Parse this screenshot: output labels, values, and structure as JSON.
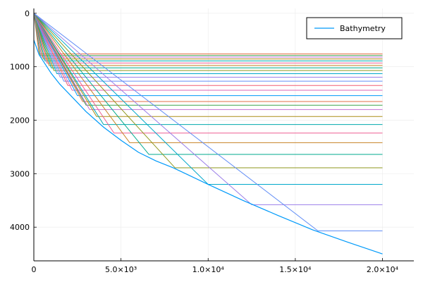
{
  "chart_data": {
    "type": "line",
    "title": "",
    "xlabel": "",
    "ylabel": "",
    "xlim": [
      0,
      21800
    ],
    "ylim": [
      4630,
      -90
    ],
    "y_inverted": true,
    "grid": true,
    "legend_position": "top-right",
    "x_ticks": [
      {
        "value": 0,
        "label": "0"
      },
      {
        "value": 5000,
        "label": "5.0×10³"
      },
      {
        "value": 10000,
        "label": "1.0×10⁴"
      },
      {
        "value": 15000,
        "label": "1.5×10⁴"
      },
      {
        "value": 20000,
        "label": "2.0×10⁴"
      }
    ],
    "y_ticks": [
      {
        "value": 0,
        "label": "0"
      },
      {
        "value": 1000,
        "label": "1000"
      },
      {
        "value": 2000,
        "label": "2000"
      },
      {
        "value": 3000,
        "label": "3000"
      },
      {
        "value": 4000,
        "label": "4000"
      }
    ],
    "bathymetry": {
      "name": "Bathymetry",
      "color": "#009AFA",
      "x": [
        0,
        300,
        500,
        1000,
        1500,
        2000,
        3000,
        4000,
        5000,
        6000,
        7000,
        8000,
        10000,
        12000,
        14000,
        16000,
        18000,
        20000
      ],
      "y": [
        500,
        775,
        875,
        1125,
        1330,
        1500,
        1840,
        2130,
        2375,
        2600,
        2760,
        2890,
        3200,
        3500,
        3780,
        4050,
        4280,
        4500
      ]
    },
    "rays": {
      "x_end": 20000,
      "start": [
        0,
        0
      ],
      "colors": [
        "#E36F47",
        "#3EA44E",
        "#C271D2",
        "#AC8D18",
        "#00A9AD",
        "#ED5E93",
        "#C68225",
        "#00A98D",
        "#8E971D",
        "#00A8CB",
        "#9B7FE9",
        "#618DF6",
        "#F05F73",
        "#DD64B5",
        "#009AFA"
      ],
      "series": [
        {
          "x_hit": 300,
          "depth": 760
        },
        {
          "x_hit": 370,
          "depth": 790
        },
        {
          "x_hit": 450,
          "depth": 820
        },
        {
          "x_hit": 540,
          "depth": 855
        },
        {
          "x_hit": 640,
          "depth": 890
        },
        {
          "x_hit": 750,
          "depth": 930
        },
        {
          "x_hit": 870,
          "depth": 975
        },
        {
          "x_hit": 1000,
          "depth": 1020
        },
        {
          "x_hit": 1150,
          "depth": 1070
        },
        {
          "x_hit": 1320,
          "depth": 1130
        },
        {
          "x_hit": 1510,
          "depth": 1195
        },
        {
          "x_hit": 1720,
          "depth": 1270
        },
        {
          "x_hit": 1950,
          "depth": 1350
        },
        {
          "x_hit": 2200,
          "depth": 1440
        },
        {
          "x_hit": 2500,
          "depth": 1540
        },
        {
          "x_hit": 2800,
          "depth": 1650
        },
        {
          "x_hit": 3000,
          "depth": 1720
        },
        {
          "x_hit": 3200,
          "depth": 1800
        },
        {
          "x_hit": 3600,
          "depth": 1930
        },
        {
          "x_hit": 4000,
          "depth": 2080
        },
        {
          "x_hit": 4600,
          "depth": 2240
        },
        {
          "x_hit": 5500,
          "depth": 2420
        },
        {
          "x_hit": 6600,
          "depth": 2640
        },
        {
          "x_hit": 8100,
          "depth": 2890
        },
        {
          "x_hit": 10000,
          "depth": 3200
        },
        {
          "x_hit": 12500,
          "depth": 3580
        },
        {
          "x_hit": 16300,
          "depth": 4070
        }
      ]
    },
    "colors": {
      "grid": "#EBEBEB",
      "axis": "#000000",
      "legend_border": "#000000",
      "background": "#FFFFFF"
    }
  }
}
